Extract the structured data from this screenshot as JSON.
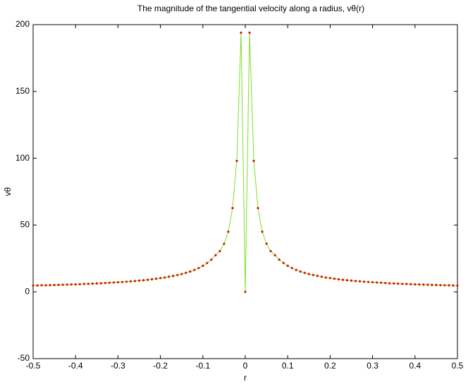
{
  "chart_data": {
    "type": "line",
    "title": "The magnitude of the tangential velocity along a radius, vθ(r)",
    "xlabel": "r",
    "ylabel": "vθ",
    "x": [
      -0.5,
      -0.49,
      -0.48,
      -0.47,
      -0.46,
      -0.45,
      -0.44,
      -0.43,
      -0.42,
      -0.41,
      -0.4,
      -0.39,
      -0.38,
      -0.37,
      -0.36,
      -0.35,
      -0.34,
      -0.33,
      -0.32,
      -0.31,
      -0.3,
      -0.29,
      -0.28,
      -0.27,
      -0.26,
      -0.25,
      -0.24,
      -0.23,
      -0.22,
      -0.21,
      -0.2,
      -0.19,
      -0.18,
      -0.17,
      -0.16,
      -0.15,
      -0.14,
      -0.13,
      -0.12,
      -0.11,
      -0.1,
      -0.09,
      -0.08,
      -0.07,
      -0.06,
      -0.05,
      -0.04,
      -0.03,
      -0.02,
      -0.01,
      0,
      0.01,
      0.02,
      0.03,
      0.04,
      0.05,
      0.06,
      0.07,
      0.08,
      0.09,
      0.1,
      0.11,
      0.12,
      0.13,
      0.14,
      0.15,
      0.16,
      0.17,
      0.18,
      0.19,
      0.2,
      0.21,
      0.22,
      0.23,
      0.24,
      0.25,
      0.26,
      0.27,
      0.28,
      0.29,
      0.3,
      0.31,
      0.32,
      0.33,
      0.34,
      0.35,
      0.36,
      0.37,
      0.38,
      0.39,
      0.4,
      0.41,
      0.42,
      0.43,
      0.44,
      0.45,
      0.46,
      0.47,
      0.48,
      0.49,
      0.5
    ],
    "series": [
      {
        "line_color": "#7ddf2a",
        "color": "#dd1100",
        "values": [
          4.7,
          4.8,
          4.9,
          4.9,
          5.0,
          5.1,
          5.2,
          5.3,
          5.4,
          5.5,
          5.6,
          5.7,
          5.9,
          6.0,
          6.1,
          6.3,
          6.4,
          6.6,
          6.8,
          7.0,
          7.2,
          7.4,
          7.6,
          7.9,
          8.1,
          8.4,
          8.7,
          9.0,
          9.4,
          9.8,
          10.3,
          10.7,
          11.3,
          11.9,
          12.6,
          13.3,
          14.2,
          15.2,
          16.4,
          17.8,
          19.5,
          21.6,
          24.1,
          27.4,
          30.5,
          36,
          45,
          62.7,
          98,
          194,
          0,
          194,
          98,
          62.7,
          45,
          36,
          30.5,
          27.4,
          24.1,
          21.6,
          19.5,
          17.8,
          16.4,
          15.2,
          14.2,
          13.3,
          12.6,
          11.9,
          11.3,
          10.7,
          10.3,
          9.8,
          9.4,
          9.0,
          8.7,
          8.4,
          8.1,
          7.9,
          7.6,
          7.4,
          7.2,
          7.0,
          6.8,
          6.6,
          6.4,
          6.3,
          6.1,
          6.0,
          5.9,
          5.7,
          5.6,
          5.5,
          5.4,
          5.3,
          5.2,
          5.1,
          5.0,
          4.9,
          4.9,
          4.8,
          4.7
        ]
      }
    ],
    "xlim": [
      -0.5,
      0.5
    ],
    "xticks": [
      -0.5,
      -0.4,
      -0.3,
      -0.2,
      -0.1,
      0,
      0.1,
      0.2,
      0.3,
      0.4,
      0.5
    ],
    "ylim": [
      -50,
      200
    ],
    "yticks": [
      -50,
      0,
      50,
      100,
      150,
      200
    ]
  }
}
